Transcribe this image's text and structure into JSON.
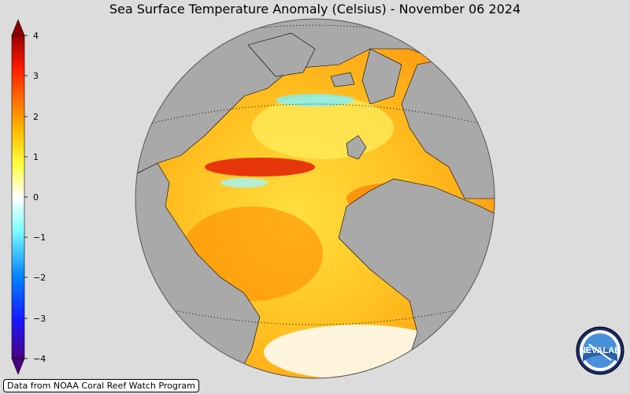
{
  "title": "Sea Surface Temperature Anomaly (Celsius) - November 06 2024",
  "colorbar": {
    "ticks": [
      "4",
      "3",
      "2",
      "1",
      "0",
      "−1",
      "−2",
      "−3",
      "−4"
    ],
    "min": -4,
    "max": 4,
    "colors": [
      "#4b0082",
      "#0000ff",
      "#00bfff",
      "#ffffff",
      "#ffff00",
      "#ff8c00",
      "#ff0000",
      "#8b0000"
    ]
  },
  "map": {
    "projection": "orthographic",
    "land_color": "#a9a9a9",
    "ocean_anomaly_dominant": "warm"
  },
  "credit": "Data from NOAA Coral Reef Watch Program",
  "logo": {
    "icon": "nesdis-logo",
    "text": "NEVALAB"
  }
}
